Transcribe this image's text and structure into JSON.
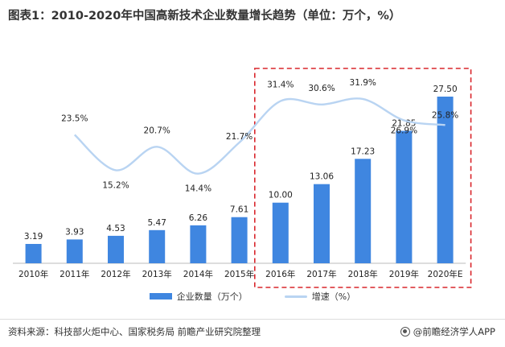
{
  "title": "图表1：2010-2020年中国高新技术企业数量增长趋势（单位：万个，%）",
  "chart_data": {
    "type": "bar",
    "categories": [
      "2010年",
      "2011年",
      "2012年",
      "2013年",
      "2014年",
      "2015年",
      "2016年",
      "2017年",
      "2018年",
      "2019年",
      "2020年E"
    ],
    "series": [
      {
        "name": "企业数量（万个）",
        "type": "bar",
        "values": [
          3.19,
          3.93,
          4.53,
          5.47,
          6.26,
          7.61,
          10.0,
          13.06,
          17.23,
          21.85,
          27.5
        ],
        "labels": [
          "3.19",
          "3.93",
          "4.53",
          "5.47",
          "6.26",
          "7.61",
          "10.00",
          "13.06",
          "17.23",
          "21.85",
          "27.50"
        ]
      },
      {
        "name": "增速（%）",
        "type": "line",
        "values": [
          null,
          23.5,
          15.2,
          20.7,
          14.4,
          21.7,
          31.4,
          30.6,
          31.9,
          26.9,
          25.8
        ],
        "labels": [
          "",
          "23.5%",
          "15.2%",
          "20.7%",
          "14.4%",
          "21.7%",
          "31.4%",
          "30.6%",
          "31.9%",
          "26.9%",
          "25.8%"
        ]
      }
    ],
    "highlight": {
      "from": "2016年",
      "to": "2020年E",
      "style": "red dashed box"
    },
    "bar_color": "#3f86e0",
    "line_color": "#b9d4f2",
    "highlight_color": "#d9262c",
    "legend_position": "bottom",
    "grid": false
  },
  "legend": {
    "bar_label": "企业数量（万个）",
    "line_label": "增速（%）"
  },
  "source": "资料来源：科技部火炬中心、国家税务局 前瞻产业研究院整理",
  "brand": "@前瞻经济学人APP",
  "brand_icon": "qianzhan-logo-icon"
}
